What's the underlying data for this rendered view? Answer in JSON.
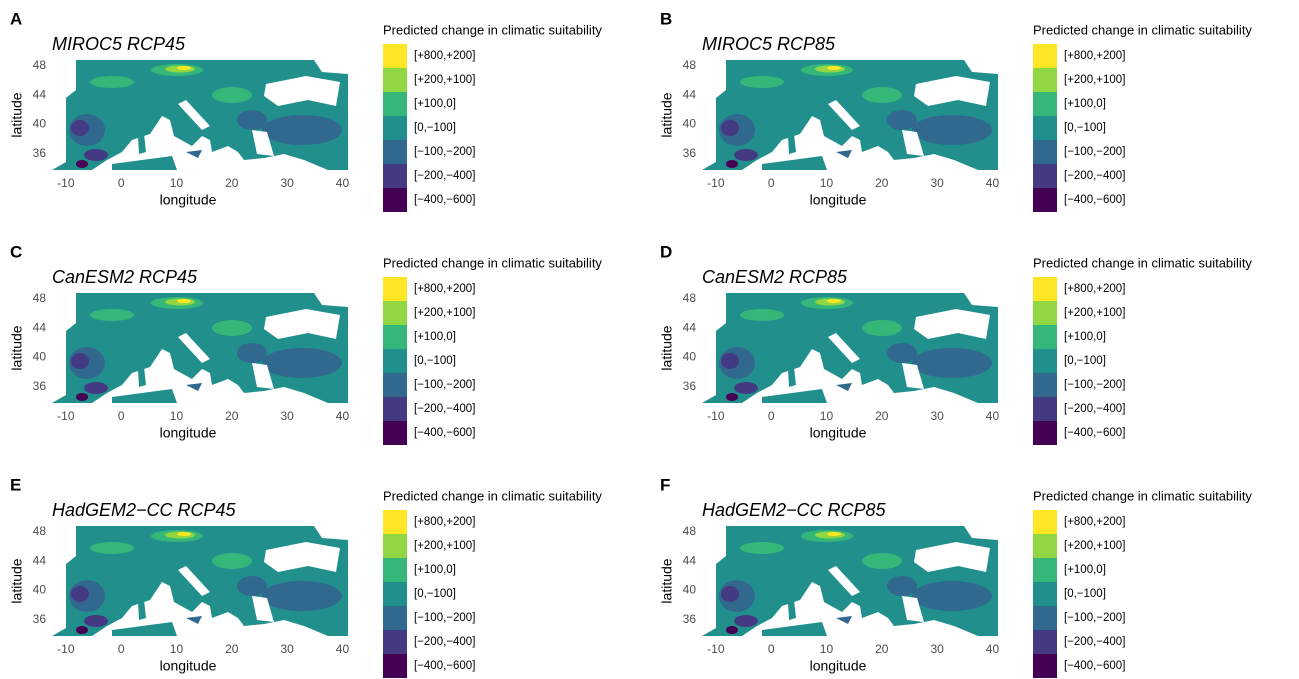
{
  "panels": [
    {
      "label": "A",
      "title": "MIROC5 RCP45",
      "x_label": "longitude",
      "y_label": "latitude",
      "xlim": [
        -12.5,
        41
      ],
      "ylim": [
        33.8,
        48.8
      ],
      "xticks": [
        -10,
        0,
        10,
        20,
        30,
        40
      ],
      "yticks": [
        36,
        40,
        44,
        48
      ],
      "legend": {
        "title": "Predicted change in climatic suitability",
        "items": [
          {
            "label": "[+800,+200]",
            "color": "#fde725"
          },
          {
            "label": "[+200,+100]",
            "color": "#90d743"
          },
          {
            "label": "[+100,0]",
            "color": "#35b779"
          },
          {
            "label": "[0,−100]",
            "color": "#21908c"
          },
          {
            "label": "[−100,−200]",
            "color": "#31688e"
          },
          {
            "label": "[−200,−400]",
            "color": "#443983"
          },
          {
            "label": "[−400,−600]",
            "color": "#440154"
          }
        ]
      }
    },
    {
      "label": "B",
      "title": "MIROC5 RCP85",
      "x_label": "longitude",
      "y_label": "latitude",
      "xlim": [
        -12.5,
        41
      ],
      "ylim": [
        33.8,
        48.8
      ],
      "xticks": [
        -10,
        0,
        10,
        20,
        30,
        40
      ],
      "yticks": [
        36,
        40,
        44,
        48
      ],
      "legend": {
        "title": "Predicted change in climatic suitability",
        "items": [
          {
            "label": "[+800,+200]",
            "color": "#fde725"
          },
          {
            "label": "[+200,+100]",
            "color": "#90d743"
          },
          {
            "label": "[+100,0]",
            "color": "#35b779"
          },
          {
            "label": "[0,−100]",
            "color": "#21908c"
          },
          {
            "label": "[−100,−200]",
            "color": "#31688e"
          },
          {
            "label": "[−200,−400]",
            "color": "#443983"
          },
          {
            "label": "[−400,−600]",
            "color": "#440154"
          }
        ]
      }
    },
    {
      "label": "C",
      "title": "CanESM2 RCP45",
      "x_label": "longitude",
      "y_label": "latitude",
      "xlim": [
        -12.5,
        41
      ],
      "ylim": [
        33.8,
        48.8
      ],
      "xticks": [
        -10,
        0,
        10,
        20,
        30,
        40
      ],
      "yticks": [
        36,
        40,
        44,
        48
      ],
      "legend": {
        "title": "Predicted change in climatic suitability",
        "items": [
          {
            "label": "[+800,+200]",
            "color": "#fde725"
          },
          {
            "label": "[+200,+100]",
            "color": "#90d743"
          },
          {
            "label": "[+100,0]",
            "color": "#35b779"
          },
          {
            "label": "[0,−100]",
            "color": "#21908c"
          },
          {
            "label": "[−100,−200]",
            "color": "#31688e"
          },
          {
            "label": "[−200,−400]",
            "color": "#443983"
          },
          {
            "label": "[−400,−600]",
            "color": "#440154"
          }
        ]
      }
    },
    {
      "label": "D",
      "title": "CanESM2 RCP85",
      "x_label": "longitude",
      "y_label": "latitude",
      "xlim": [
        -12.5,
        41
      ],
      "ylim": [
        33.8,
        48.8
      ],
      "xticks": [
        -10,
        0,
        10,
        20,
        30,
        40
      ],
      "yticks": [
        36,
        40,
        44,
        48
      ],
      "legend": {
        "title": "Predicted change in climatic suitability",
        "items": [
          {
            "label": "[+800,+200]",
            "color": "#fde725"
          },
          {
            "label": "[+200,+100]",
            "color": "#90d743"
          },
          {
            "label": "[+100,0]",
            "color": "#35b779"
          },
          {
            "label": "[0,−100]",
            "color": "#21908c"
          },
          {
            "label": "[−100,−200]",
            "color": "#31688e"
          },
          {
            "label": "[−200,−400]",
            "color": "#443983"
          },
          {
            "label": "[−400,−600]",
            "color": "#440154"
          }
        ]
      }
    },
    {
      "label": "E",
      "title": "HadGEM2−CC RCP45",
      "x_label": "longitude",
      "y_label": "latitude",
      "xlim": [
        -12.5,
        41
      ],
      "ylim": [
        33.8,
        48.8
      ],
      "xticks": [
        -10,
        0,
        10,
        20,
        30,
        40
      ],
      "yticks": [
        36,
        40,
        44,
        48
      ],
      "legend": {
        "title": "Predicted change in climatic suitability",
        "items": [
          {
            "label": "[+800,+200]",
            "color": "#fde725"
          },
          {
            "label": "[+200,+100]",
            "color": "#90d743"
          },
          {
            "label": "[+100,0]",
            "color": "#35b779"
          },
          {
            "label": "[0,−100]",
            "color": "#21908c"
          },
          {
            "label": "[−100,−200]",
            "color": "#31688e"
          },
          {
            "label": "[−200,−400]",
            "color": "#443983"
          },
          {
            "label": "[−400,−600]",
            "color": "#440154"
          }
        ]
      }
    },
    {
      "label": "F",
      "title": "HadGEM2−CC RCP85",
      "x_label": "longitude",
      "y_label": "latitude",
      "xlim": [
        -12.5,
        41
      ],
      "ylim": [
        33.8,
        48.8
      ],
      "xticks": [
        -10,
        0,
        10,
        20,
        30,
        40
      ],
      "yticks": [
        36,
        40,
        44,
        48
      ],
      "legend": {
        "title": "Predicted change in climatic suitability",
        "items": [
          {
            "label": "[+800,+200]",
            "color": "#fde725"
          },
          {
            "label": "[+200,+100]",
            "color": "#90d743"
          },
          {
            "label": "[+100,0]",
            "color": "#35b779"
          },
          {
            "label": "[0,−100]",
            "color": "#21908c"
          },
          {
            "label": "[−100,−200]",
            "color": "#31688e"
          },
          {
            "label": "[−200,−400]",
            "color": "#443983"
          },
          {
            "label": "[−400,−600]",
            "color": "#440154"
          }
        ]
      }
    }
  ]
}
